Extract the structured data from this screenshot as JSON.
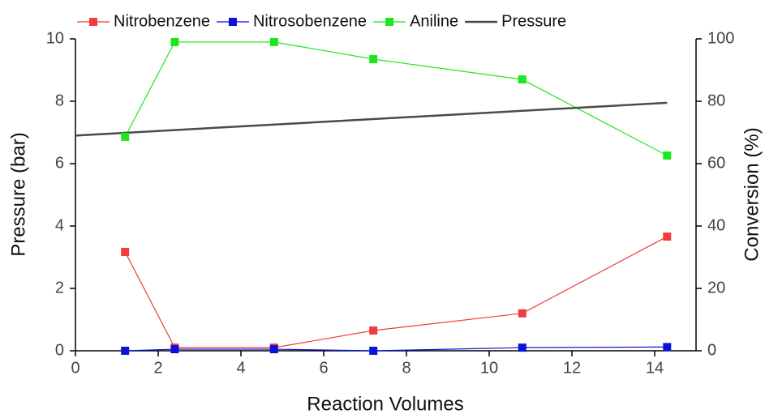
{
  "chart_data": {
    "type": "line",
    "xlabel": "Reaction Volumes",
    "ylabel": "Pressure (bar)",
    "y2label": "Conversion (%)",
    "xlim": [
      0,
      15
    ],
    "xticks": [
      0,
      2,
      4,
      6,
      8,
      10,
      12,
      14
    ],
    "ylim": [
      0,
      10
    ],
    "yticks": [
      0,
      2,
      4,
      6,
      8,
      10
    ],
    "y2lim": [
      0,
      100
    ],
    "y2ticks": [
      0,
      20,
      40,
      60,
      80,
      100
    ],
    "legend": "top",
    "series": [
      {
        "name": "Nitrobenzene",
        "color": "#f03c3c",
        "axis": "y2",
        "markers": true,
        "x": [
          1.2,
          2.4,
          4.8,
          7.2,
          10.8,
          14.3
        ],
        "values": [
          31.7,
          1,
          1,
          6.5,
          12,
          36.6
        ]
      },
      {
        "name": "Nitrosobenzene",
        "color": "#0a14d8",
        "axis": "y2",
        "markers": true,
        "x": [
          1.2,
          2.4,
          4.8,
          7.2,
          10.8,
          14.3
        ],
        "values": [
          0,
          0.5,
          0.5,
          0,
          1,
          1.2
        ]
      },
      {
        "name": "Aniline",
        "color": "#1ee61e",
        "axis": "y2",
        "markers": true,
        "x": [
          1.2,
          2.4,
          4.8,
          7.2,
          10.8,
          14.3
        ],
        "values": [
          68.6,
          99,
          99,
          93.5,
          87,
          62.6
        ]
      },
      {
        "name": "Pressure",
        "color": "#4a4a4a",
        "axis": "y",
        "markers": false,
        "x": [
          0,
          14.3
        ],
        "values": [
          6.9,
          7.95
        ]
      }
    ]
  }
}
